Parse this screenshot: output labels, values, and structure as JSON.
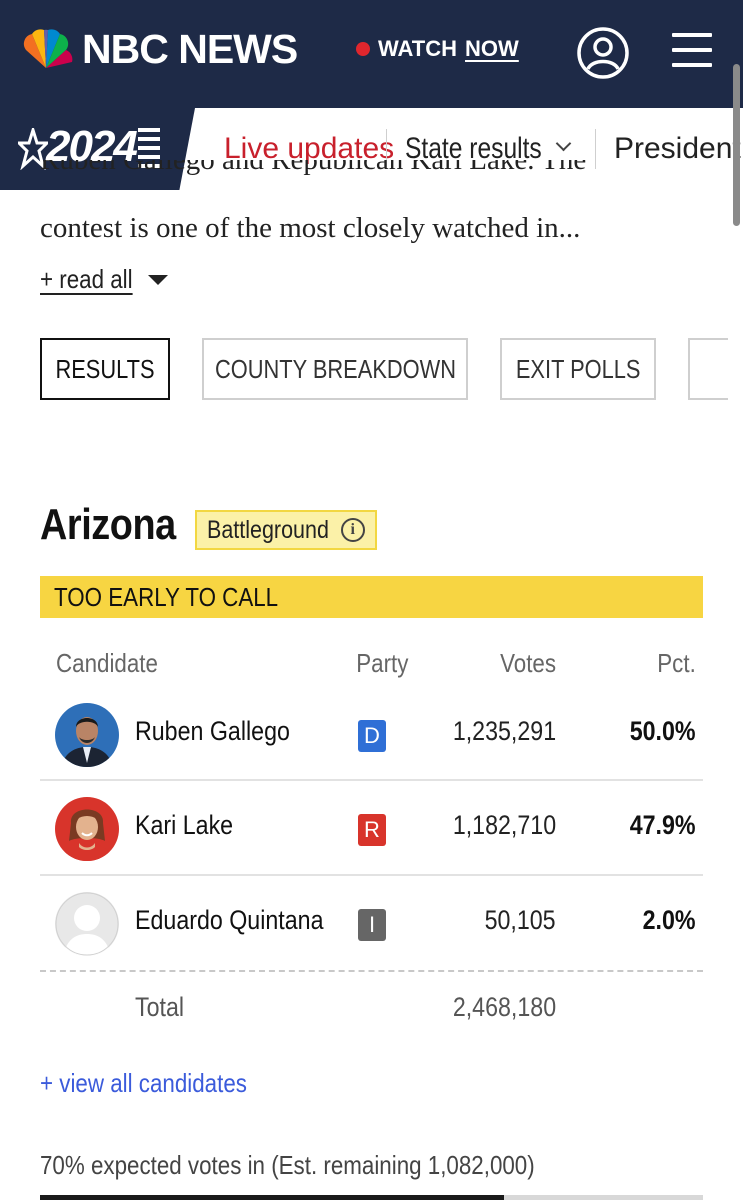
{
  "header": {
    "brand": "NBC NEWS",
    "watch_label": "WATCH",
    "watch_now_label": "NOW"
  },
  "subnav": {
    "badge_year": "2024",
    "links": [
      {
        "label": "Live updates",
        "active": true
      },
      {
        "label": "State results",
        "dropdown": true
      },
      {
        "label": "President"
      }
    ]
  },
  "article": {
    "cut_line": "Ruben Gallego and Republican Kari Lake. The",
    "line": "contest is one of the most closely watched in...",
    "read_all": "+ read all"
  },
  "tabs": [
    {
      "label": "RESULTS",
      "active": true
    },
    {
      "label": "COUNTY BREAKDOWN"
    },
    {
      "label": "EXIT POLLS"
    }
  ],
  "race": {
    "state": "Arizona",
    "badge": "Battleground",
    "call_status": "TOO EARLY TO CALL",
    "columns": {
      "candidate": "Candidate",
      "party": "Party",
      "votes": "Votes",
      "pct": "Pct."
    },
    "candidates": [
      {
        "name": "Ruben Gallego",
        "party": "D",
        "party_color": "#2f6fd6",
        "votes": "1,235,291",
        "pct": "50.0%"
      },
      {
        "name": "Kari Lake",
        "party": "R",
        "party_color": "#d8342b",
        "votes": "1,182,710",
        "pct": "47.9%"
      },
      {
        "name": "Eduardo Quintana",
        "party": "I",
        "party_color": "#666666",
        "votes": "50,105",
        "pct": "2.0%"
      }
    ],
    "total_label": "Total",
    "total_votes": "2,468,180",
    "view_all": "+ view all candidates",
    "expected_text": "70% expected votes in (Est. remaining 1,082,000)",
    "expected_fraction": 0.7
  },
  "colors": {
    "navy": "#1e2a47",
    "accent_red": "#c8202c",
    "call_yellow": "#f7d542",
    "badge_bg": "#fbf1a8",
    "link_blue": "#3b5bdb"
  },
  "icons": [
    "nbc-peacock-icon",
    "user-icon",
    "menu-icon",
    "star-icon",
    "chevron-down-icon",
    "caret-down-icon",
    "info-icon"
  ]
}
